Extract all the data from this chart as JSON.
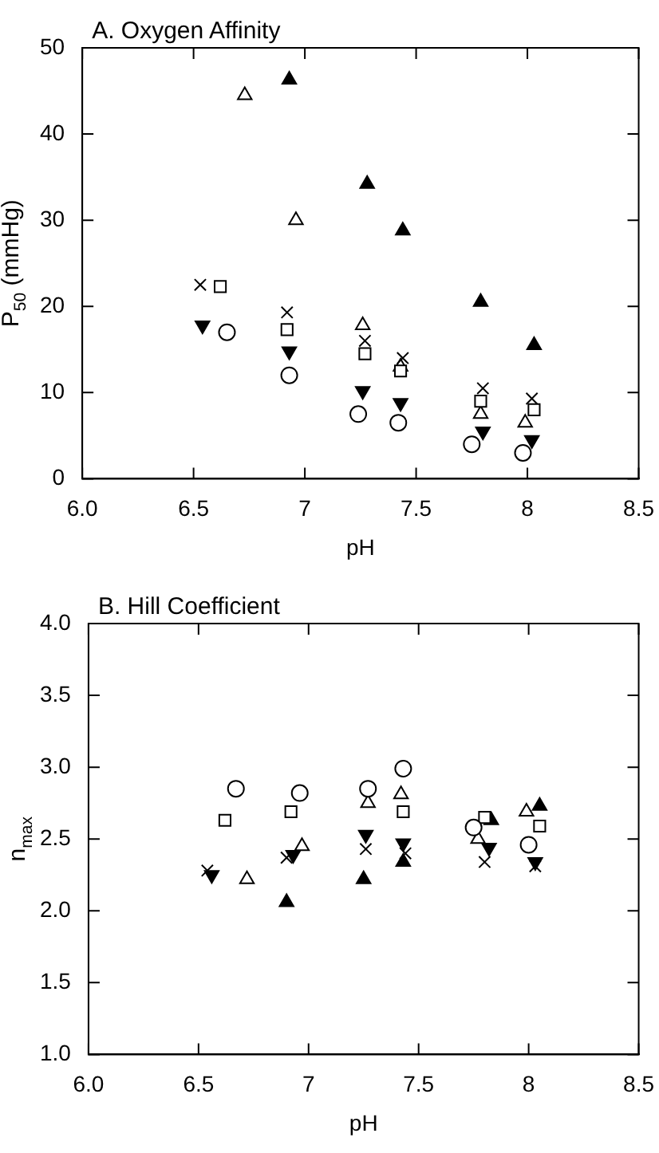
{
  "chart_data": [
    {
      "type": "scatter",
      "title": "A. Oxygen Affinity",
      "xlabel": "pH",
      "ylabel": "P$_{50}$ (mmHg)",
      "xlim": [
        6,
        8.5
      ],
      "xticks": [
        {
          "value": 6,
          "label": "6.0"
        },
        6.5,
        7,
        7.5,
        8,
        8.5
      ],
      "ylim": [
        0,
        50
      ],
      "yticks": [
        0,
        10,
        20,
        30,
        40,
        50
      ],
      "grid": false,
      "legend": false,
      "series": [
        {
          "color": "#000000",
          "marker": "circle",
          "x": [
            6.65,
            6.93,
            7.24,
            7.42,
            7.75,
            7.98
          ],
          "values": [
            17,
            12,
            7.5,
            6.5,
            4,
            3
          ]
        },
        {
          "color": "#000000",
          "marker": "square",
          "x": [
            6.62,
            6.92,
            7.27,
            7.43,
            7.79,
            8.03
          ],
          "values": [
            22.3,
            17.3,
            14.5,
            12.5,
            9,
            8
          ]
        },
        {
          "color": "#000000",
          "marker": "cross",
          "x": [
            6.53,
            6.92,
            7.27,
            7.44,
            7.8,
            8.02
          ],
          "values": [
            22.5,
            19.3,
            16,
            14,
            10.5,
            9.3
          ]
        },
        {
          "color": "#000000",
          "marker": "triangle",
          "x": [
            6.73,
            6.96,
            7.26,
            7.43,
            7.79,
            7.99
          ],
          "values": [
            44.5,
            30,
            17.8,
            13,
            7.5,
            6.5
          ]
        },
        {
          "color": "#000000",
          "marker": "triangle-filled",
          "x": [
            6.93,
            7.28,
            7.44,
            7.79,
            8.03
          ],
          "values": [
            46.3,
            34.2,
            28.8,
            20.5,
            15.5
          ]
        },
        {
          "color": "#000000",
          "marker": "triangle-down-filled",
          "x": [
            6.54,
            6.93,
            7.26,
            7.43,
            7.8,
            8.02
          ],
          "values": [
            17.8,
            14.8,
            10.2,
            8.8,
            5.5,
            4.5
          ]
        }
      ]
    },
    {
      "type": "scatter",
      "title": "B. Hill Coefficient",
      "xlabel": "pH",
      "ylabel": "n$_{max}$",
      "xlim": [
        6,
        8.5
      ],
      "xticks": [
        {
          "value": 6,
          "label": "6.0"
        },
        6.5,
        7,
        7.5,
        8,
        8.5
      ],
      "ylim": [
        1,
        4
      ],
      "yticks": [
        {
          "value": 1,
          "label": "1.0"
        },
        1.5,
        {
          "value": 2,
          "label": "2.0"
        },
        2.5,
        {
          "value": 3,
          "label": "3.0"
        },
        3.5,
        {
          "value": 4,
          "label": "4.0"
        }
      ],
      "grid": false,
      "legend": false,
      "series": [
        {
          "color": "#000000",
          "marker": "circle",
          "x": [
            6.67,
            6.96,
            7.27,
            7.43,
            7.75,
            8.0
          ],
          "values": [
            2.85,
            2.82,
            2.85,
            2.99,
            2.58,
            2.46
          ]
        },
        {
          "color": "#000000",
          "marker": "square",
          "x": [
            6.62,
            6.92,
            7.27,
            7.43,
            7.8,
            8.05
          ],
          "values": [
            2.63,
            2.69,
            null,
            2.69,
            2.65,
            2.59
          ]
        },
        {
          "color": "#000000",
          "marker": "cross",
          "x": [
            6.54,
            6.9,
            7.26,
            7.44,
            7.8,
            8.03
          ],
          "values": [
            2.28,
            2.37,
            2.43,
            2.4,
            2.34,
            2.31
          ]
        },
        {
          "color": "#000000",
          "marker": "triangle",
          "x": [
            6.72,
            6.97,
            7.27,
            7.42,
            7.77,
            7.99
          ],
          "values": [
            2.22,
            2.45,
            2.75,
            2.81,
            2.5,
            2.69
          ]
        },
        {
          "color": "#000000",
          "marker": "triangle-filled",
          "x": [
            6.9,
            7.25,
            7.43,
            7.83,
            8.05
          ],
          "values": [
            2.06,
            2.22,
            2.34,
            2.63,
            2.73
          ]
        },
        {
          "color": "#000000",
          "marker": "triangle-down-filled",
          "x": [
            6.56,
            6.93,
            7.26,
            7.43,
            7.82,
            8.03
          ],
          "values": [
            2.25,
            2.39,
            2.53,
            2.47,
            2.44,
            2.34
          ]
        }
      ]
    }
  ]
}
